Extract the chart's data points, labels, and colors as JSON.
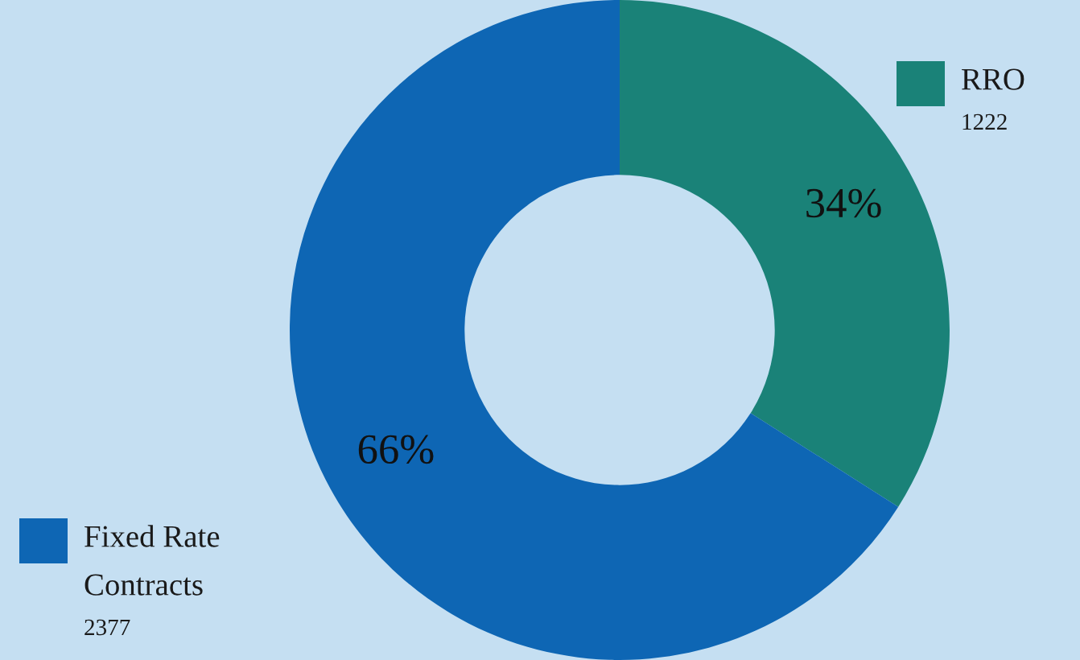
{
  "chart_data": {
    "type": "donut",
    "categories": [
      "RRO",
      "Fixed Rate Contracts"
    ],
    "values": [
      34,
      66
    ],
    "value_labels": [
      "34%",
      "66%"
    ],
    "colors": [
      "#1a8278",
      "#0e66b4"
    ],
    "legend": "top left",
    "annotations": [
      "1222",
      "2377"
    ]
  }
}
